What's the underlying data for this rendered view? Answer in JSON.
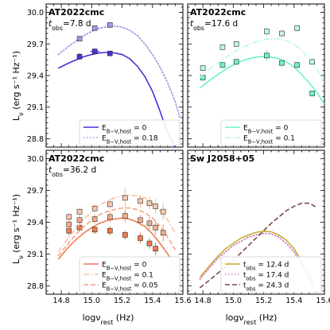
{
  "figure": {
    "ylabel": "L_ν (erg s⁻¹ Hz⁻¹)",
    "xlabel": "logν_rest (Hz)"
  },
  "chart_data": [
    {
      "type": "line",
      "panel": "top-left",
      "title": "AT2022cmc",
      "tobs": "7.8 d",
      "xlim": [
        14.7,
        15.6
      ],
      "ylim": [
        28.72,
        30.08
      ],
      "xticks": [
        14.8,
        15.0,
        15.2,
        15.4,
        15.6
      ],
      "yticks": [
        28.8,
        29.1,
        29.4,
        29.7,
        30.0
      ],
      "legend_position": "lower-right",
      "series": [
        {
          "name": "E_{B−V,host} = 0",
          "style": "solid",
          "color": "#4b2fd6",
          "curve": {
            "x": [
              14.78,
              14.85,
              14.9,
              14.95,
              15.0,
              15.05,
              15.1,
              15.15,
              15.2,
              15.25,
              15.3,
              15.35,
              15.4,
              15.45,
              15.5,
              15.55,
              15.6
            ],
            "y": [
              29.47,
              29.52,
              29.55,
              29.58,
              29.6,
              29.615,
              29.62,
              29.615,
              29.6,
              29.56,
              29.49,
              29.39,
              29.25,
              29.06,
              28.85,
              28.72,
              28.6
            ]
          },
          "points": {
            "x": [
              14.92,
              15.02,
              15.12
            ],
            "y": [
              29.58,
              29.63,
              29.61
            ],
            "yerr": [
              0.03,
              0.02,
              0.01
            ],
            "xerr": [
              0,
              0.03,
              0
            ]
          }
        },
        {
          "name": "E_{B−V,host} = 0.18",
          "style": "dotted",
          "color": "#9b8de8",
          "curve": {
            "x": [
              14.78,
              14.85,
              14.9,
              14.95,
              15.0,
              15.05,
              15.1,
              15.15,
              15.2,
              15.25,
              15.3,
              15.35,
              15.4,
              15.45,
              15.5,
              15.55,
              15.58
            ],
            "y": [
              29.6,
              29.68,
              29.73,
              29.78,
              29.82,
              29.85,
              29.865,
              29.87,
              29.86,
              29.83,
              29.78,
              29.7,
              29.6,
              29.48,
              29.33,
              29.15,
              29.0
            ]
          },
          "points": {
            "x": [
              14.92,
              15.02,
              15.12
            ],
            "y": [
              29.75,
              29.85,
              29.88
            ],
            "yerr": [
              0.02,
              0.02,
              0.02
            ],
            "xerr": [
              0,
              0,
              0
            ]
          }
        }
      ]
    },
    {
      "type": "line",
      "panel": "top-right",
      "title": "AT2022cmc",
      "tobs": "17.6 d",
      "xlim": [
        14.7,
        15.6
      ],
      "ylim": [
        28.72,
        30.08
      ],
      "xticks": [
        14.8,
        15.0,
        15.2,
        15.4,
        15.6
      ],
      "yticks": [
        28.8,
        29.1,
        29.4,
        29.7,
        30.0
      ],
      "legend_position": "lower-right",
      "series": [
        {
          "name": "E_{B−V,host} = 0",
          "style": "solid",
          "color": "#6ff2c8",
          "curve": {
            "x": [
              14.78,
              14.85,
              14.9,
              14.95,
              15.0,
              15.05,
              15.1,
              15.15,
              15.2,
              15.25,
              15.3,
              15.35,
              15.4,
              15.45,
              15.5,
              15.55,
              15.6
            ],
            "y": [
              29.28,
              29.36,
              29.41,
              29.46,
              29.5,
              29.535,
              29.56,
              29.575,
              29.58,
              29.575,
              29.56,
              29.53,
              29.48,
              29.41,
              29.33,
              29.24,
              29.13
            ]
          },
          "points": {
            "x": [
              14.8,
              14.93,
              15.02,
              15.22,
              15.32,
              15.42,
              15.52
            ],
            "y": [
              29.38,
              29.5,
              29.53,
              29.59,
              29.52,
              29.5,
              29.23
            ],
            "yerr": [
              0.03,
              0.03,
              0.03,
              0.05,
              0.04,
              0.03,
              0.03
            ],
            "xerr": [
              0,
              0,
              0,
              0,
              0,
              0,
              0
            ]
          }
        },
        {
          "name": "E_{B−V,host} = 0.1",
          "style": "dashdot",
          "color": "#b8f7e3",
          "curve": {
            "x": [
              14.78,
              14.85,
              14.9,
              14.95,
              15.0,
              15.05,
              15.1,
              15.15,
              15.2,
              15.25,
              15.3,
              15.35,
              15.4,
              15.45,
              15.5,
              15.55,
              15.6
            ],
            "y": [
              29.38,
              29.47,
              29.52,
              29.57,
              29.62,
              29.66,
              29.69,
              29.72,
              29.74,
              29.75,
              29.75,
              29.73,
              29.7,
              29.64,
              29.56,
              29.46,
              29.33
            ]
          },
          "points": {
            "x": [
              14.8,
              14.93,
              15.02,
              15.22,
              15.32,
              15.42,
              15.52
            ],
            "y": [
              29.47,
              29.67,
              29.7,
              29.82,
              29.8,
              29.85,
              29.53
            ],
            "yerr": [
              0.03,
              0.03,
              0.03,
              0.05,
              0.04,
              0.03,
              0.03
            ],
            "xerr": [
              0,
              0,
              0,
              0,
              0,
              0,
              0
            ]
          }
        }
      ]
    },
    {
      "type": "line",
      "panel": "bottom-left",
      "title": "AT2022cmc",
      "tobs": "36.2 d",
      "xlim": [
        14.7,
        15.6
      ],
      "ylim": [
        28.72,
        30.08
      ],
      "xticks": [
        14.8,
        15.0,
        15.2,
        15.4,
        15.6
      ],
      "yticks": [
        28.8,
        29.1,
        29.4,
        29.7,
        30.0
      ],
      "legend_position": "lower-right",
      "series": [
        {
          "name": "E_{B−V,host} = 0",
          "style": "solid",
          "color": "#f07c4e",
          "curve": {
            "x": [
              14.78,
              14.85,
              14.9,
              14.95,
              15.0,
              15.05,
              15.1,
              15.15,
              15.2,
              15.25,
              15.3,
              15.35,
              15.4,
              15.45,
              15.5,
              15.55
            ],
            "y": [
              29.05,
              29.17,
              29.24,
              29.3,
              29.35,
              29.39,
              29.415,
              29.43,
              29.44,
              29.43,
              29.4,
              29.36,
              29.29,
              29.2,
              29.1,
              28.98
            ]
          },
          "points": {
            "x": [
              14.85,
              14.92,
              15.02,
              15.12,
              15.22,
              15.32,
              15.38,
              15.42
            ],
            "y": [
              29.32,
              29.35,
              29.33,
              29.32,
              29.28,
              29.25,
              29.2,
              29.15
            ],
            "yerr": [
              0.04,
              0.04,
              0.04,
              0.04,
              0.04,
              0.05,
              0.05,
              0.06
            ],
            "xerr": [
              0,
              0,
              0,
              0,
              0,
              0,
              0,
              0
            ]
          }
        },
        {
          "name": "E_{B−V,host} = 0.1",
          "style": "dashdot",
          "color": "#f9c3a6",
          "curve": {
            "x": [
              14.78,
              14.85,
              14.9,
              14.95,
              15.0,
              15.05,
              15.1,
              15.15,
              15.2,
              15.25,
              15.3,
              15.35,
              15.4,
              15.45,
              15.5,
              15.55
            ],
            "y": [
              29.12,
              29.26,
              29.35,
              29.43,
              29.5,
              29.56,
              29.6,
              29.63,
              29.65,
              29.655,
              29.65,
              29.63,
              29.58,
              29.51,
              29.42,
              29.3
            ]
          },
          "points": {
            "x": [
              14.85,
              14.92,
              15.02,
              15.12,
              15.22,
              15.32,
              15.38,
              15.42,
              15.47
            ],
            "y": [
              29.45,
              29.5,
              29.53,
              29.57,
              29.63,
              29.6,
              29.58,
              29.55,
              29.5
            ],
            "yerr": [
              0.04,
              0.04,
              0.04,
              0.05,
              0.1,
              0.06,
              0.06,
              0.07,
              0.08
            ],
            "xerr": [
              0,
              0,
              0,
              0,
              0,
              0,
              0,
              0,
              0
            ]
          }
        },
        {
          "name": "E_{B−V,host} = 0.05",
          "style": "dashed",
          "color": "#f6a37f",
          "curve": {
            "x": [
              14.78,
              14.85,
              14.9,
              14.95,
              15.0,
              15.05,
              15.1,
              15.15,
              15.2,
              15.25,
              15.3,
              15.35,
              15.4,
              15.45,
              15.5,
              15.55
            ],
            "y": [
              29.08,
              29.21,
              29.29,
              29.36,
              29.42,
              29.47,
              29.5,
              29.52,
              29.535,
              29.535,
              29.52,
              29.49,
              29.44,
              29.36,
              29.26,
              29.14
            ]
          },
          "points": {
            "x": [
              14.85,
              14.92,
              15.02,
              15.12,
              15.22,
              15.32,
              15.38,
              15.42,
              15.47
            ],
            "y": [
              29.38,
              29.42,
              29.43,
              29.45,
              29.46,
              29.42,
              29.39,
              29.35,
              29.3
            ],
            "yerr": [
              0.04,
              0.04,
              0.04,
              0.05,
              0.06,
              0.05,
              0.06,
              0.07,
              0.08
            ],
            "xerr": [
              0,
              0,
              0,
              0,
              0,
              0,
              0,
              0,
              0
            ]
          }
        }
      ]
    },
    {
      "type": "line",
      "panel": "bottom-right",
      "title": "Sw J2058+05",
      "tobs": "",
      "xlim": [
        14.7,
        15.6
      ],
      "ylim": [
        28.72,
        30.08
      ],
      "xticks": [
        14.8,
        15.0,
        15.2,
        15.4,
        15.6
      ],
      "yticks": [
        28.8,
        29.1,
        29.4,
        29.7,
        30.0
      ],
      "legend_position": "lower-right",
      "series": [
        {
          "name": "t_obs = 12.4 d",
          "style": "solid",
          "color": "#c2b12a",
          "curve": {
            "x": [
              14.78,
              14.85,
              14.9,
              14.95,
              15.0,
              15.05,
              15.1,
              15.15,
              15.2,
              15.25,
              15.3,
              15.35,
              15.4,
              15.45,
              15.5,
              15.55
            ],
            "y": [
              28.88,
              29.0,
              29.08,
              29.15,
              29.2,
              29.25,
              29.28,
              29.305,
              29.315,
              29.31,
              29.28,
              29.23,
              29.15,
              29.03,
              28.9,
              28.75
            ]
          },
          "points": null
        },
        {
          "name": "t_obs = 17.4 d",
          "style": "dotted",
          "color": "#d07ac8",
          "curve": {
            "x": [
              14.78,
              14.85,
              14.9,
              14.95,
              15.0,
              15.05,
              15.1,
              15.15,
              15.2,
              15.25,
              15.3,
              15.35,
              15.4,
              15.45,
              15.5,
              15.55
            ],
            "y": [
              28.86,
              28.98,
              29.06,
              29.12,
              29.18,
              29.22,
              29.26,
              29.28,
              29.295,
              29.29,
              29.26,
              29.2,
              29.12,
              29.0,
              28.86,
              28.72
            ]
          },
          "points": null
        },
        {
          "name": "t_obs = 24.3 d",
          "style": "dashed",
          "color": "#7a4a48",
          "curve": {
            "x": [
              14.78,
              14.85,
              14.9,
              14.95,
              15.0,
              15.05,
              15.1,
              15.15,
              15.2,
              15.25,
              15.3,
              15.35,
              15.4,
              15.45,
              15.5,
              15.55
            ],
            "y": [
              28.78,
              28.86,
              28.92,
              28.98,
              29.04,
              29.11,
              29.18,
              29.25,
              29.32,
              29.39,
              29.45,
              29.51,
              29.55,
              29.58,
              29.58,
              29.54
            ]
          },
          "points": null
        }
      ]
    }
  ]
}
